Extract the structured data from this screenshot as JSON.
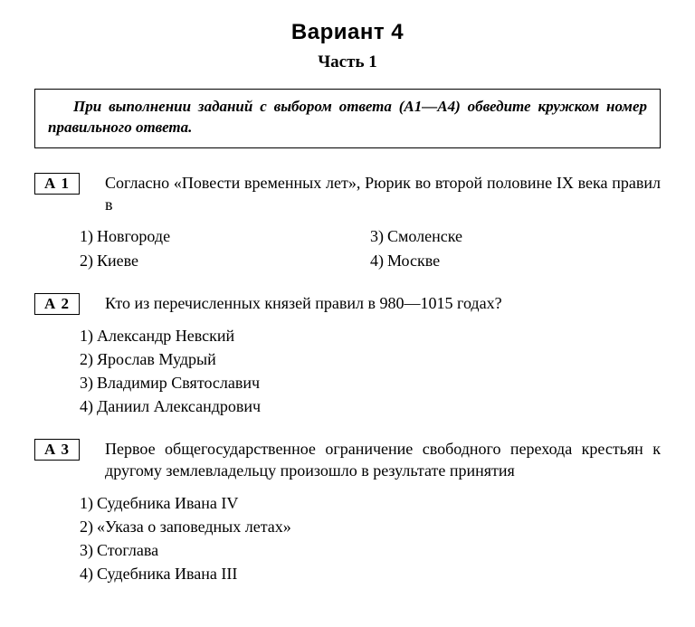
{
  "title": "Вариант 4",
  "subtitle": "Часть 1",
  "instructions": "При выполнении заданий с выбором ответа (А1—А4) обведите кружком номер правильного ответа.",
  "questions": [
    {
      "tag": "А 1",
      "text": "Согласно «Повести временных лет», Рюрик во второй половине IX века правил в",
      "layout": "two-col",
      "options": [
        "Новгороде",
        "Киеве",
        "Смоленске",
        "Москве"
      ]
    },
    {
      "tag": "А 2",
      "text": "Кто из перечисленных князей правил в 980—1015 годах?",
      "layout": "one-col",
      "options": [
        "Александр Невский",
        "Ярослав Мудрый",
        "Владимир Святославич",
        "Даниил Александрович"
      ]
    },
    {
      "tag": "А 3",
      "text": "Первое общегосударственное ограничение свободного перехода крестьян к другому землевладельцу произошло в результате принятия",
      "layout": "one-col",
      "options": [
        "Судебника Ивана IV",
        "«Указа о заповедных летах»",
        "Стоглава",
        "Судебника Ивана III"
      ]
    }
  ]
}
